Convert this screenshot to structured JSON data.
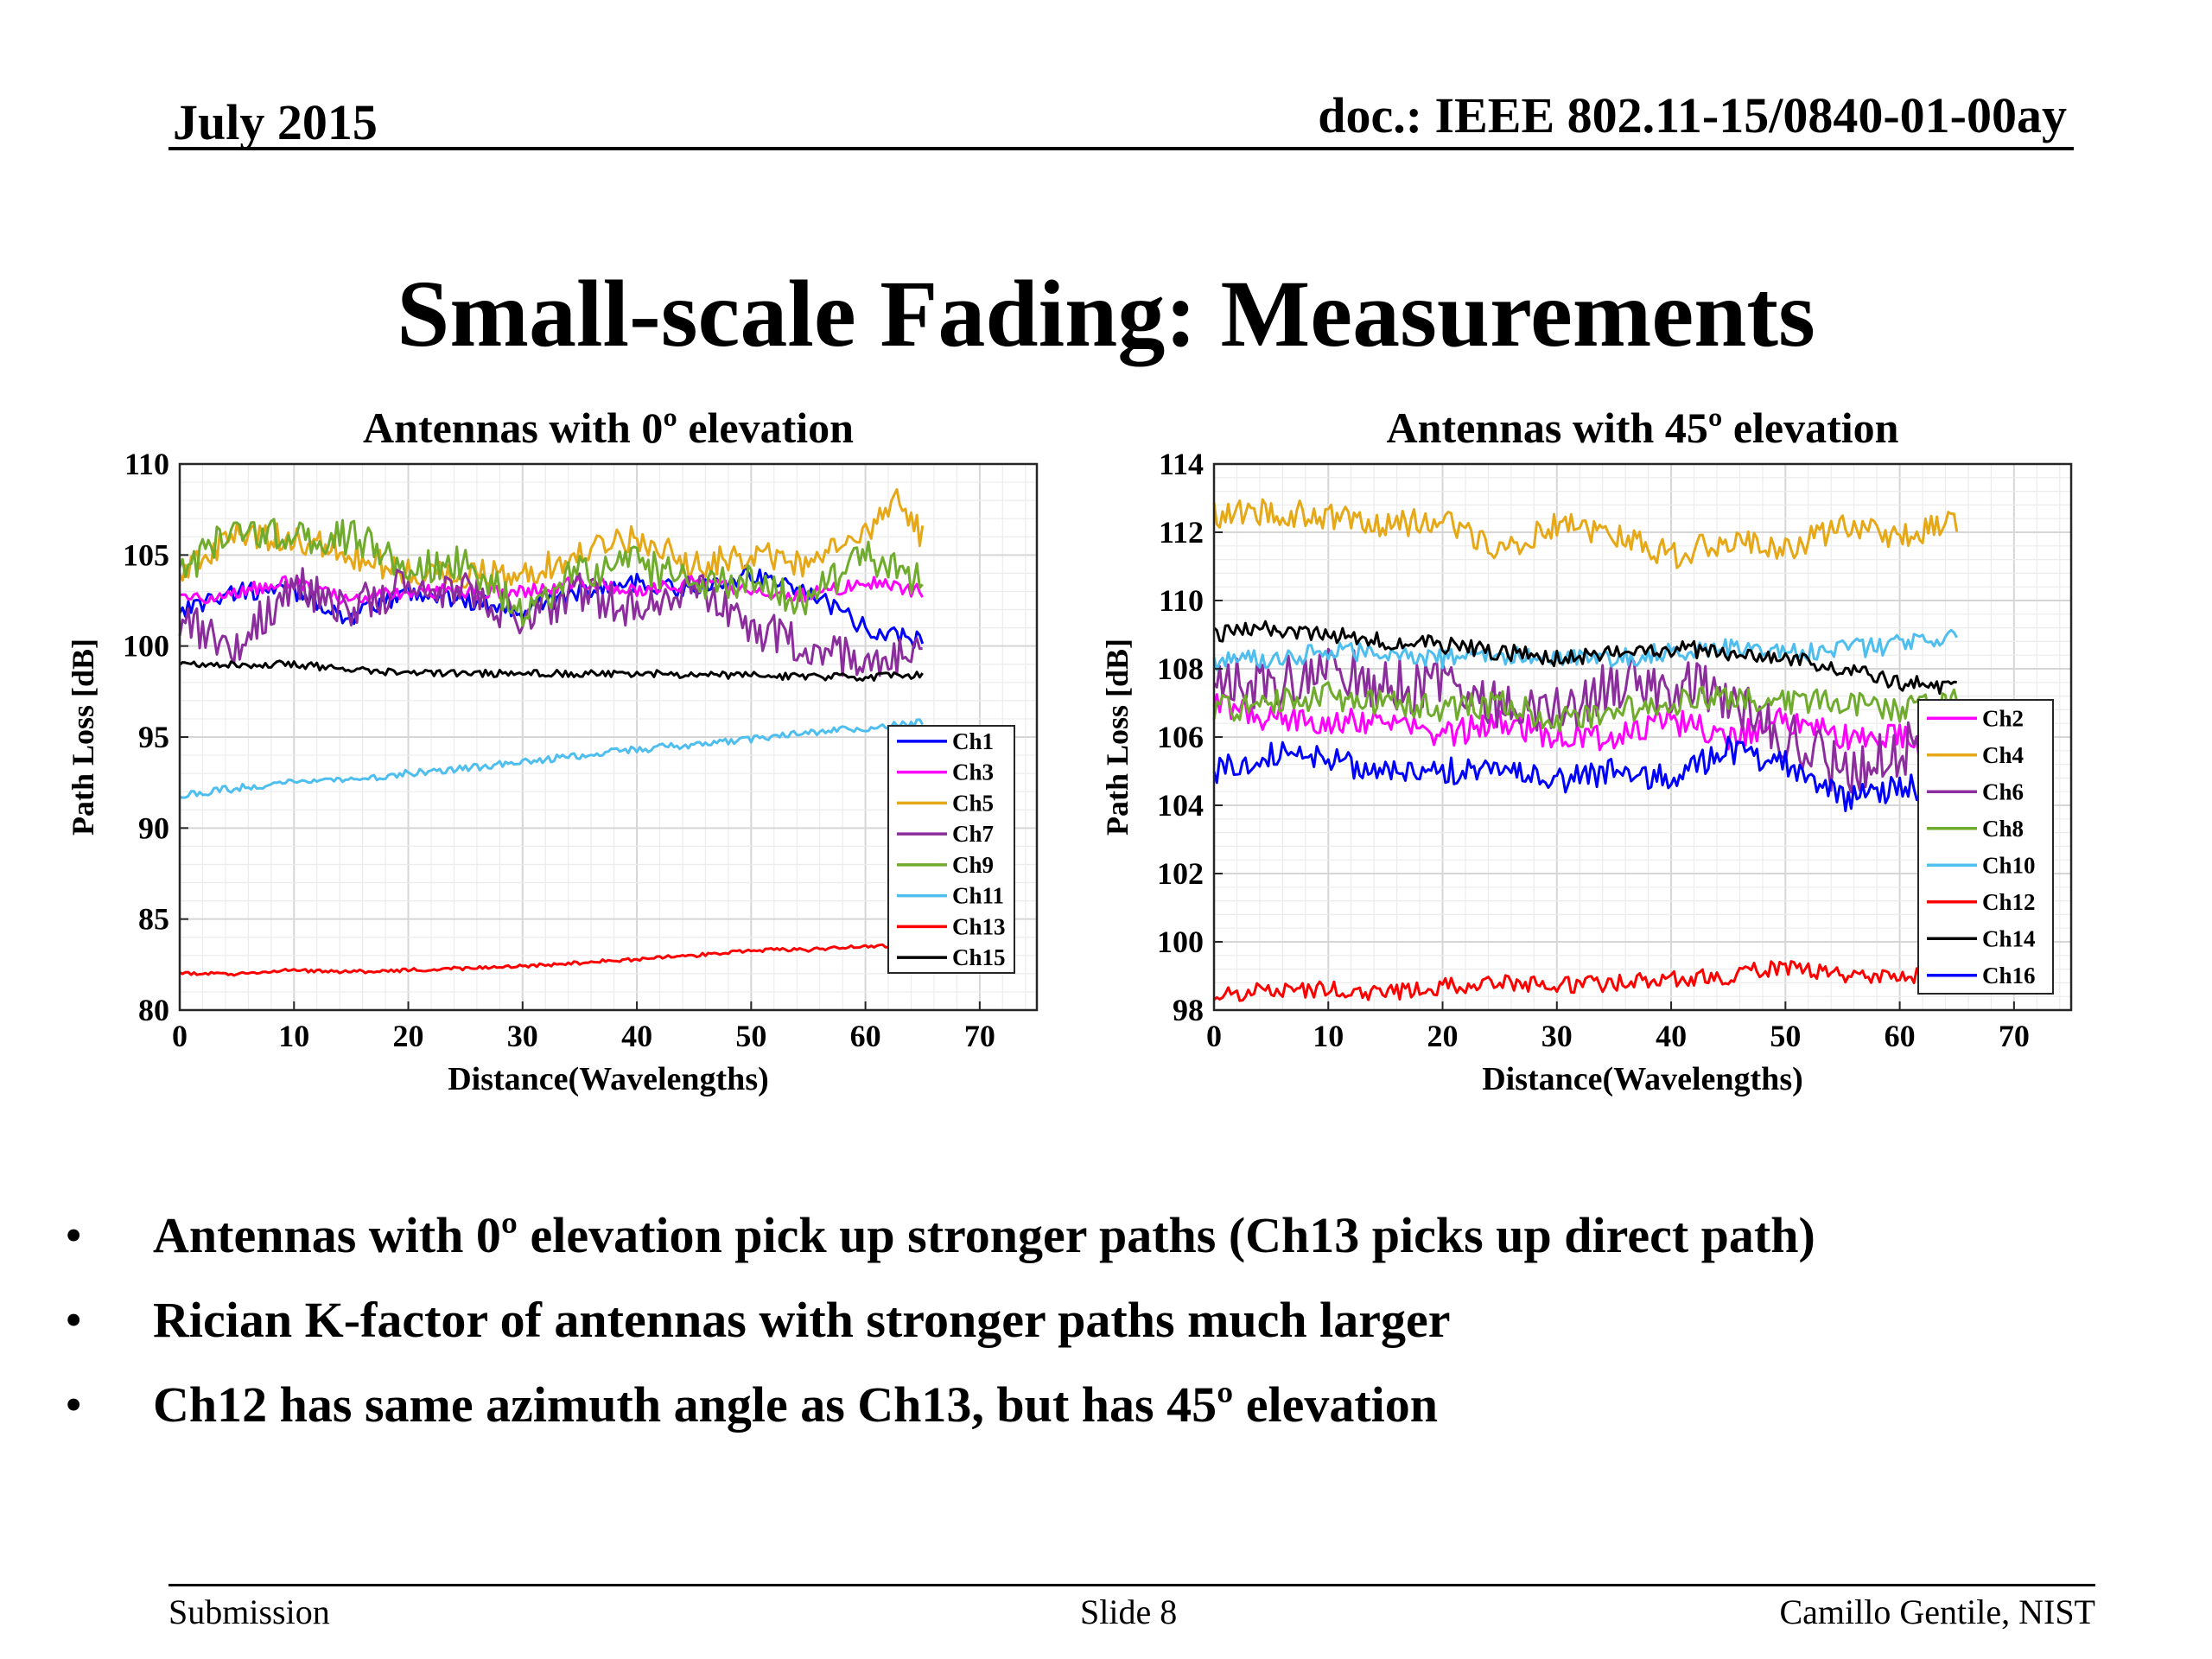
{
  "header": {
    "date": "July 2015",
    "doc_id": "doc.: IEEE 802.11-15/0840-01-00ay"
  },
  "slide_title": "Small-scale Fading: Measurements",
  "bullets": [
    "Antennas with 0º elevation pick up stronger paths (Ch13 picks up direct path)",
    "Rician K-factor of antennas with stronger paths much larger",
    "Ch12 has same azimuth angle as Ch13, but has 45º elevation"
  ],
  "footer": {
    "left": "Submission",
    "center": "Slide 8",
    "right": "Camillo Gentile, NIST"
  },
  "chart_data": [
    {
      "type": "line",
      "title": "Antennas with 0º elevation",
      "xlabel": "Distance(Wavelengths)",
      "ylabel": "Path Loss [dB]",
      "xlim": [
        0,
        75
      ],
      "ylim": [
        80,
        110
      ],
      "xticks": [
        0,
        10,
        20,
        30,
        40,
        50,
        60,
        70
      ],
      "yticks": [
        80,
        85,
        90,
        95,
        100,
        105,
        110
      ],
      "grid": true,
      "legend": "bottom-right",
      "x_range": [
        0,
        65
      ],
      "series": [
        {
          "name": "Ch1",
          "color": "#0000ff",
          "jitter": 0.5,
          "x": [
            0,
            5,
            10,
            15,
            20,
            25,
            30,
            35,
            40,
            45,
            50,
            55,
            60,
            65
          ],
          "y": [
            102.0,
            103.0,
            103.0,
            101.5,
            103.0,
            102.5,
            102.0,
            103.0,
            103.5,
            103.0,
            104.0,
            103.0,
            101.0,
            100.3
          ]
        },
        {
          "name": "Ch3",
          "color": "#ff00ff",
          "jitter": 0.4,
          "x": [
            0,
            5,
            10,
            15,
            20,
            25,
            30,
            35,
            40,
            45,
            50,
            55,
            60,
            65
          ],
          "y": [
            102.5,
            103.0,
            103.5,
            102.5,
            103.0,
            103.0,
            103.0,
            103.5,
            103.0,
            103.5,
            103.0,
            102.8,
            103.5,
            103.0
          ]
        },
        {
          "name": "Ch5",
          "color": "#e6a817",
          "jitter": 0.8,
          "x": [
            0,
            5,
            10,
            15,
            20,
            25,
            30,
            35,
            40,
            45,
            50,
            55,
            60,
            63,
            65
          ],
          "y": [
            104.0,
            106.0,
            106.0,
            105.0,
            104.0,
            104.0,
            104.0,
            105.0,
            106.0,
            104.5,
            105.0,
            104.5,
            106.0,
            108.0,
            106.0
          ]
        },
        {
          "name": "Ch7",
          "color": "#8b2d9c",
          "jitter": 1.1,
          "x": [
            0,
            5,
            10,
            15,
            20,
            25,
            30,
            35,
            40,
            45,
            50,
            55,
            60,
            65
          ],
          "y": [
            101.5,
            100.0,
            103.5,
            102.0,
            103.5,
            103.0,
            101.5,
            103.0,
            102.0,
            103.5,
            101.0,
            100.0,
            99.0,
            99.5
          ]
        },
        {
          "name": "Ch9",
          "color": "#6fab2c",
          "jitter": 1.0,
          "x": [
            0,
            5,
            10,
            15,
            20,
            25,
            30,
            35,
            40,
            45,
            50,
            55,
            60,
            65
          ],
          "y": [
            104.0,
            106.5,
            106.0,
            106.0,
            104.5,
            104.5,
            102.0,
            104.0,
            104.5,
            103.5,
            103.5,
            102.5,
            105.0,
            103.5
          ]
        },
        {
          "name": "Ch11",
          "color": "#4dbeee",
          "jitter": 0.2,
          "x": [
            0,
            5,
            10,
            15,
            20,
            25,
            30,
            35,
            40,
            45,
            50,
            55,
            60,
            65
          ],
          "y": [
            91.8,
            92.2,
            92.5,
            92.7,
            93.0,
            93.3,
            93.6,
            94.0,
            94.3,
            94.6,
            94.9,
            95.2,
            95.5,
            95.8
          ]
        },
        {
          "name": "Ch13",
          "color": "#ff0000",
          "jitter": 0.1,
          "x": [
            0,
            5,
            10,
            15,
            20,
            25,
            30,
            35,
            40,
            45,
            50,
            55,
            60,
            65
          ],
          "y": [
            82.0,
            82.0,
            82.2,
            82.1,
            82.2,
            82.3,
            82.4,
            82.6,
            82.8,
            83.0,
            83.3,
            83.3,
            83.5,
            83.6
          ]
        },
        {
          "name": "Ch15",
          "color": "#000000",
          "jitter": 0.2,
          "x": [
            0,
            5,
            10,
            15,
            20,
            25,
            30,
            35,
            40,
            45,
            50,
            55,
            60,
            65
          ],
          "y": [
            99.0,
            99.0,
            99.0,
            98.7,
            98.5,
            98.5,
            98.5,
            98.5,
            98.5,
            98.4,
            98.4,
            98.3,
            98.3,
            98.4
          ]
        }
      ]
    },
    {
      "type": "line",
      "title": "Antennas with 45º elevation",
      "xlabel": "Distance(Wavelengths)",
      "ylabel": "Path Loss [dB]",
      "xlim": [
        0,
        75
      ],
      "ylim": [
        98,
        114
      ],
      "xticks": [
        0,
        10,
        20,
        30,
        40,
        50,
        60,
        70
      ],
      "yticks": [
        98,
        100,
        102,
        104,
        106,
        108,
        110,
        112,
        114
      ],
      "grid": true,
      "legend": "bottom-right",
      "x_range": [
        0,
        65
      ],
      "series": [
        {
          "name": "Ch2",
          "color": "#ff00ff",
          "jitter": 0.4,
          "x": [
            0,
            5,
            10,
            15,
            20,
            25,
            30,
            35,
            40,
            45,
            50,
            55,
            60,
            65
          ],
          "y": [
            107.0,
            106.5,
            106.5,
            106.5,
            106.0,
            106.5,
            106.0,
            106.0,
            106.5,
            106.0,
            106.5,
            106.0,
            106.0,
            106.0
          ]
        },
        {
          "name": "Ch4",
          "color": "#e6a817",
          "jitter": 0.4,
          "x": [
            0,
            5,
            10,
            15,
            20,
            25,
            30,
            35,
            40,
            45,
            50,
            55,
            60,
            65
          ],
          "y": [
            112.5,
            112.6,
            112.5,
            112.2,
            112.4,
            111.5,
            112.2,
            112.0,
            111.3,
            111.8,
            111.5,
            112.2,
            111.8,
            112.4
          ]
        },
        {
          "name": "Ch6",
          "color": "#8b2d9c",
          "jitter": 0.8,
          "x": [
            0,
            5,
            10,
            15,
            20,
            25,
            30,
            35,
            40,
            45,
            50,
            55,
            60,
            65
          ],
          "y": [
            107.5,
            107.5,
            108.0,
            107.5,
            107.5,
            107.0,
            106.8,
            107.5,
            107.5,
            107.3,
            106.0,
            105.0,
            105.5,
            106.5
          ]
        },
        {
          "name": "Ch8",
          "color": "#6fab2c",
          "jitter": 0.4,
          "x": [
            0,
            5,
            10,
            15,
            20,
            25,
            30,
            35,
            40,
            45,
            50,
            55,
            60,
            65
          ],
          "y": [
            106.8,
            107.0,
            107.2,
            107.0,
            106.8,
            107.0,
            106.5,
            106.8,
            107.0,
            107.2,
            107.0,
            107.0,
            106.8,
            107.0
          ]
        },
        {
          "name": "Ch10",
          "color": "#4dbeee",
          "jitter": 0.3,
          "x": [
            0,
            5,
            10,
            15,
            20,
            25,
            30,
            35,
            40,
            45,
            50,
            55,
            60,
            65
          ],
          "y": [
            108.2,
            108.3,
            108.5,
            108.4,
            108.3,
            108.4,
            108.3,
            108.3,
            108.5,
            108.6,
            108.5,
            108.6,
            108.7,
            109.0
          ]
        },
        {
          "name": "Ch12",
          "color": "#ff0000",
          "jitter": 0.25,
          "x": [
            0,
            5,
            10,
            15,
            20,
            25,
            30,
            35,
            40,
            45,
            50,
            55,
            60,
            65
          ],
          "y": [
            98.4,
            98.6,
            98.6,
            98.5,
            98.7,
            98.8,
            98.7,
            98.8,
            98.9,
            99.0,
            99.3,
            99.0,
            98.9,
            99.3
          ]
        },
        {
          "name": "Ch14",
          "color": "#000000",
          "jitter": 0.25,
          "x": [
            0,
            5,
            10,
            15,
            20,
            25,
            30,
            35,
            40,
            45,
            50,
            55,
            60,
            65
          ],
          "y": [
            109.0,
            109.2,
            109.0,
            108.8,
            108.7,
            108.5,
            108.3,
            108.5,
            108.6,
            108.5,
            108.3,
            108.0,
            107.6,
            107.4
          ]
        },
        {
          "name": "Ch16",
          "color": "#0000ff",
          "jitter": 0.4,
          "x": [
            0,
            5,
            10,
            15,
            20,
            25,
            30,
            35,
            40,
            45,
            50,
            55,
            60,
            65
          ],
          "y": [
            105.0,
            105.5,
            105.3,
            105.0,
            105.0,
            105.0,
            104.7,
            105.0,
            104.8,
            105.6,
            105.2,
            104.2,
            104.5,
            104.5
          ]
        }
      ]
    }
  ]
}
